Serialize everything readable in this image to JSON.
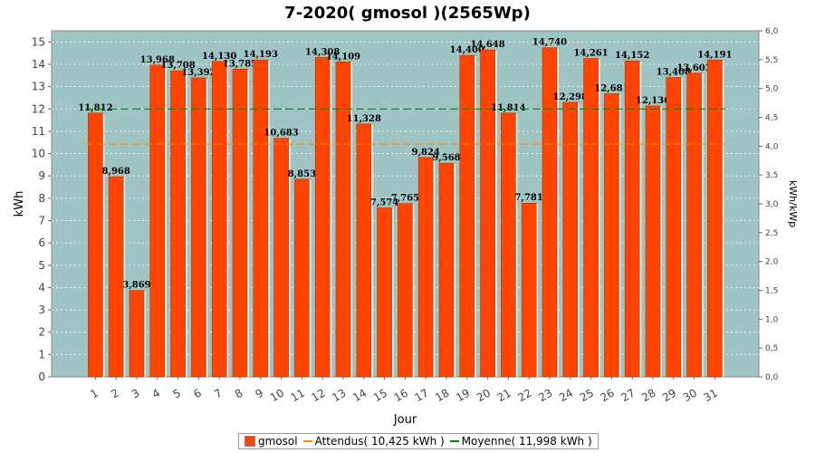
{
  "chart_data": {
    "type": "bar",
    "title": "7-2020( gmosol )(2565Wp)",
    "xlabel": "Jour",
    "ylabel": "kWh",
    "y2label": "kWh/kWp",
    "ylim": [
      0,
      15.5
    ],
    "y2lim": [
      0,
      6.0
    ],
    "yticks": [
      "0",
      "1",
      "2",
      "3",
      "4",
      "5",
      "6",
      "7",
      "8",
      "9",
      "10",
      "11",
      "12",
      "13",
      "14",
      "15"
    ],
    "y2ticks": [
      "0,0",
      "0,5",
      "1,0",
      "1,5",
      "2,0",
      "2,5",
      "3,0",
      "3,5",
      "4,0",
      "4,5",
      "5,0",
      "5,5",
      "6,0"
    ],
    "categories": [
      "1",
      "2",
      "3",
      "4",
      "5",
      "6",
      "7",
      "8",
      "9",
      "10",
      "11",
      "12",
      "13",
      "14",
      "15",
      "16",
      "17",
      "18",
      "19",
      "20",
      "21",
      "22",
      "23",
      "24",
      "25",
      "26",
      "27",
      "28",
      "29",
      "30",
      "31"
    ],
    "series": [
      {
        "name": "gmosol",
        "color": "#ff4400",
        "values": [
          11.812,
          8.968,
          3.869,
          13.968,
          13.708,
          13.392,
          14.13,
          13.785,
          14.193,
          10.683,
          8.853,
          14.308,
          14.109,
          11.328,
          7.574,
          7.765,
          9.824,
          9.568,
          14.4,
          14.648,
          11.814,
          7.781,
          14.74,
          12.298,
          14.261,
          12.681,
          14.152,
          12.136,
          13.408,
          13.603,
          14.191
        ],
        "labels": [
          "11,812",
          "8,968",
          "3,869",
          "13,968",
          "13,708",
          "13,392",
          "14,130",
          "13,785",
          "14,193",
          "10,683",
          "8,853",
          "14,308",
          "14,109",
          "11,328",
          "7,574",
          "7,765",
          "9,824",
          "9,568",
          "14,400",
          "14,648",
          "11,814",
          "7,781",
          "14,740",
          "12,298",
          "14,261",
          "12,681",
          "14,152",
          "12,136",
          "13,408",
          "13,603",
          "14,191"
        ]
      }
    ],
    "reference_lines": [
      {
        "name": "Attendus",
        "value": 10.425,
        "color": "#ff8800",
        "legend": "Attendus( 10,425 kWh )"
      },
      {
        "name": "Moyenne",
        "value": 11.998,
        "color": "#008800",
        "legend": "Moyenne( 11,998 kWh )"
      }
    ],
    "plot_background": "#9ec4c4",
    "grid": true,
    "legend_position": "bottom-center"
  }
}
